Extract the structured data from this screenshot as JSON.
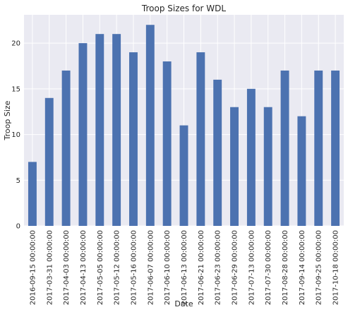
{
  "chart_data": {
    "type": "bar",
    "title": "Troop Sizes for WDL",
    "xlabel": "Date",
    "ylabel": "Troop Size",
    "ylim": [
      0,
      23.1
    ],
    "yticks": [
      0,
      5,
      10,
      15,
      20
    ],
    "grid": true,
    "categories": [
      "2016-09-15 00:00:00",
      "2017-03-31 00:00:00",
      "2017-04-03 00:00:00",
      "2017-04-13 00:00:00",
      "2017-05-05 00:00:00",
      "2017-05-12 00:00:00",
      "2017-05-16 00:00:00",
      "2017-06-07 00:00:00",
      "2017-06-10 00:00:00",
      "2017-06-13 00:00:00",
      "2017-06-21 00:00:00",
      "2017-06-23 00:00:00",
      "2017-06-29 00:00:00",
      "2017-07-13 00:00:00",
      "2017-07-30 00:00:00",
      "2017-08-28 00:00:00",
      "2017-09-14 00:00:00",
      "2017-09-25 00:00:00",
      "2017-10-18 00:00:00"
    ],
    "values": [
      7,
      14,
      17,
      20,
      21,
      21,
      19,
      22,
      18,
      11,
      19,
      16,
      13,
      15,
      13,
      17,
      12,
      17,
      17
    ],
    "colors": {
      "bar": "#4c72b0",
      "plot_bg": "#eaeaf2",
      "grid": "#ffffff"
    }
  }
}
